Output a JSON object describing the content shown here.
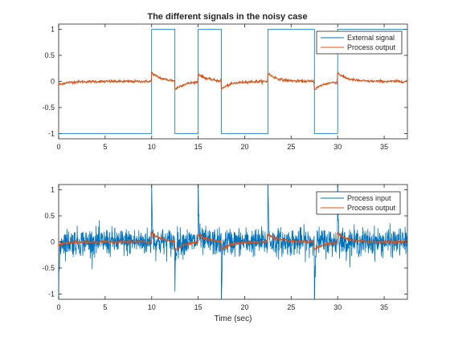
{
  "figure": {
    "title": "The different signals in the noisy case",
    "xlabel": "Time (sec)"
  },
  "colors": {
    "blue": "#0072BD",
    "orange": "#D95319",
    "axis": "#262626",
    "background": "#ffffff"
  },
  "chart_data": [
    {
      "type": "line",
      "title": "The different signals in the noisy case",
      "xlabel": "",
      "ylabel": "",
      "xlim": [
        0,
        37.5
      ],
      "ylim": [
        -1.1,
        1.1
      ],
      "xticks": [
        0,
        5,
        10,
        15,
        20,
        25,
        30,
        35
      ],
      "yticks": [
        -1,
        -0.5,
        0,
        0.5,
        1
      ],
      "ytick_labels": [
        "-1",
        "-0.5",
        "0",
        "0.5",
        "1"
      ],
      "grid": false,
      "legend_position": "top-right",
      "series": [
        {
          "name": "External signal",
          "kind": "step",
          "x": [
            0,
            10,
            10,
            12.5,
            12.5,
            15,
            15,
            17.5,
            17.5,
            22.5,
            22.5,
            27.5,
            27.5,
            30,
            30,
            37.5
          ],
          "y": [
            -1,
            -1,
            1,
            1,
            -1,
            -1,
            1,
            1,
            -1,
            -1,
            1,
            1,
            -1,
            -1,
            1,
            1
          ]
        },
        {
          "name": "Process output",
          "kind": "response",
          "start": -0.09,
          "noise": 0.012,
          "kicks": [
            {
              "t": 0,
              "amp": -0.06
            },
            {
              "t": 10,
              "amp": 0.17
            },
            {
              "t": 12.5,
              "amp": -0.17
            },
            {
              "t": 15,
              "amp": 0.16
            },
            {
              "t": 17.5,
              "amp": -0.16
            },
            {
              "t": 22.5,
              "amp": 0.16
            },
            {
              "t": 27.5,
              "amp": -0.16
            },
            {
              "t": 30,
              "amp": 0.18
            }
          ],
          "tau": 1.0
        }
      ]
    },
    {
      "type": "line",
      "title": "",
      "xlabel": "Time (sec)",
      "ylabel": "",
      "xlim": [
        0,
        37.5
      ],
      "ylim": [
        -1.1,
        1.1
      ],
      "xticks": [
        0,
        5,
        10,
        15,
        20,
        25,
        30,
        35
      ],
      "yticks": [
        -1,
        -0.5,
        0,
        0.5,
        1
      ],
      "ytick_labels": [
        "-1",
        "-0.5",
        "0",
        "0.5",
        "1"
      ],
      "grid": false,
      "legend_position": "top-right",
      "series": [
        {
          "name": "Process input",
          "kind": "noisy",
          "noise": 0.13,
          "spikes": [
            {
              "t": 0,
              "amp": -1.4
            },
            {
              "t": 10,
              "amp": 1.4
            },
            {
              "t": 12.5,
              "amp": -0.9
            },
            {
              "t": 15,
              "amp": 1.4
            },
            {
              "t": 17.5,
              "amp": -1.4
            },
            {
              "t": 22.5,
              "amp": 1.4
            },
            {
              "t": 27.5,
              "amp": -1.4
            },
            {
              "t": 30,
              "amp": 1.4
            }
          ]
        },
        {
          "name": "Process output",
          "kind": "response",
          "start": -0.09,
          "noise": 0.012,
          "kicks": [
            {
              "t": 0,
              "amp": -0.06
            },
            {
              "t": 10,
              "amp": 0.17
            },
            {
              "t": 12.5,
              "amp": -0.17
            },
            {
              "t": 15,
              "amp": 0.16
            },
            {
              "t": 17.5,
              "amp": -0.16
            },
            {
              "t": 22.5,
              "amp": 0.16
            },
            {
              "t": 27.5,
              "amp": -0.16
            },
            {
              "t": 30,
              "amp": 0.18
            }
          ],
          "tau": 1.0
        }
      ]
    }
  ]
}
